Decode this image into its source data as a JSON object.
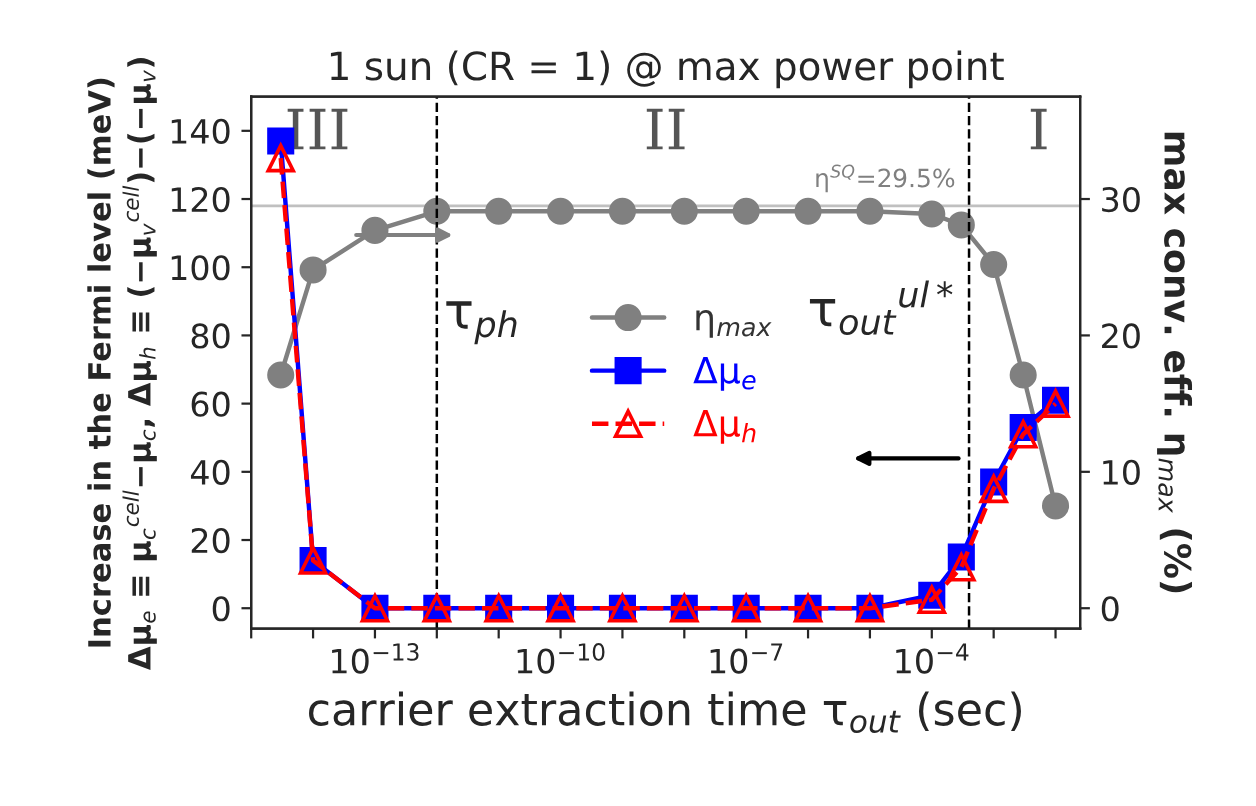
{
  "chart_data": {
    "type": "line",
    "title": "1 sun (CR = 1) @ max power point",
    "xlabel": "carrier extraction time τ$_{out}$ (sec)",
    "ylabel": "Increase in the Fermi level (meV)\nΔμ$_{e}$ ≡ μ$_{c}$$^{cell}$−μ$_{c}$, Δμ$_{h}$ ≡ (−μ$_{v}$$^{cell}$)−(−μ$_{v}$)",
    "y2label": "max conv. eff. η$_{max}$ (%)",
    "log": "x",
    "x": [
      3e-15,
      1e-14,
      1e-13,
      1e-12,
      1e-11,
      1e-10,
      1e-09,
      1e-08,
      1e-07,
      1e-06,
      1e-05,
      0.0001,
      0.0003,
      0.001,
      0.003,
      0.01
    ],
    "series": [
      {
        "name": "η$_{max}$",
        "color": "#808080",
        "axis": "y2",
        "marker": "circle",
        "line_style": "solid",
        "values": [
          17.1,
          24.8,
          27.7,
          29.1,
          29.1,
          29.1,
          29.1,
          29.1,
          29.1,
          29.1,
          29.1,
          28.9,
          28.1,
          25.2,
          17.1,
          7.5
        ]
      },
      {
        "name": "Δμ$_{e}$",
        "color": "#0000ff",
        "marker": "square",
        "line_style": "solid",
        "values": [
          137,
          14,
          0,
          0,
          0,
          0,
          0,
          0,
          0,
          0,
          0,
          3.8,
          15,
          37,
          53,
          61
        ]
      },
      {
        "name": "Δμ$_{h}$",
        "color": "#ff0000",
        "marker": "triangle",
        "line_style": "dashed",
        "values": [
          132,
          14,
          0,
          0,
          0,
          0,
          0,
          0,
          0,
          0,
          0,
          2.5,
          12,
          35,
          51,
          60
        ]
      }
    ],
    "xlim": [
      1e-15,
      0.025
    ],
    "xticks": [
      {
        "value": 1e-15,
        "label": null
      },
      {
        "value": 1e-14,
        "label": null
      },
      {
        "value": 1e-13,
        "label": "10$^{−13}$"
      },
      {
        "value": 1e-12,
        "label": null
      },
      {
        "value": 1e-11,
        "label": null
      },
      {
        "value": 1e-10,
        "label": "10$^{−10}$"
      },
      {
        "value": 1e-09,
        "label": null
      },
      {
        "value": 1e-08,
        "label": null
      },
      {
        "value": 1e-07,
        "label": "10$^{−7}$"
      },
      {
        "value": 1e-06,
        "label": null
      },
      {
        "value": 1e-05,
        "label": null
      },
      {
        "value": 0.0001,
        "label": "10$^{−4}$"
      },
      {
        "value": 0.001,
        "label": null
      },
      {
        "value": 0.01,
        "label": null
      }
    ],
    "ylim": [
      -6,
      150
    ],
    "yticks": [
      0,
      20,
      40,
      60,
      80,
      100,
      120,
      140
    ],
    "y2lim": [
      -1.5,
      37.5
    ],
    "y2ticks": [
      0,
      10,
      20,
      30
    ],
    "ref_lines": [
      {
        "axis": "x",
        "value": 1e-12,
        "label": "τ$_{ph}$",
        "color": "#000000",
        "line_style": "dashed"
      },
      {
        "axis": "x",
        "value": 0.0004,
        "label": "τ$_{out}$$^{ul*}$",
        "color": "#000000",
        "line_style": "dashed"
      },
      {
        "axis": "y2",
        "value": 29.5,
        "label": "η$^{SQ}$=29.5%",
        "color": "#c0c0c0",
        "line_style": "solid"
      }
    ],
    "annotations": [
      "III",
      "II",
      "I"
    ],
    "legend": "center",
    "grid": false
  }
}
